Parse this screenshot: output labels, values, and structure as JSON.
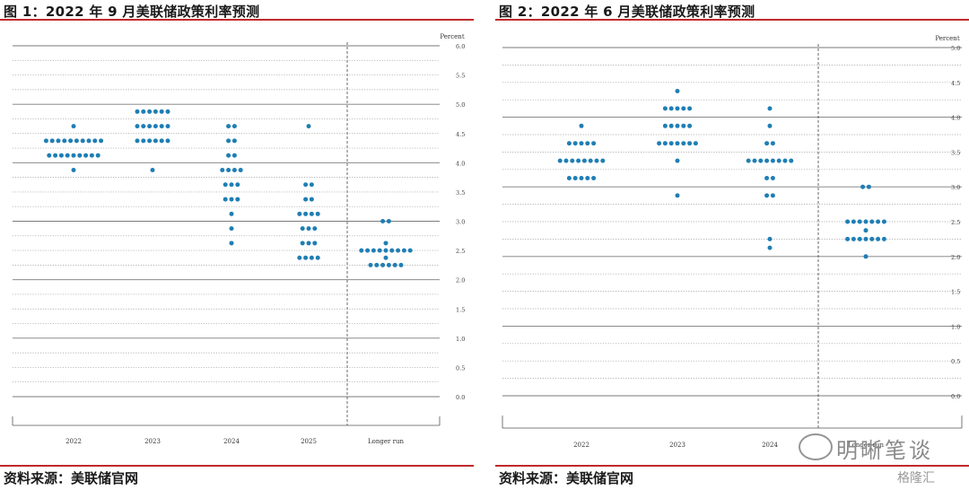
{
  "figures": [
    {
      "title": "图 1：2022 年 9 月美联储政策利率预测",
      "source": "资料来源：美联储官网"
    },
    {
      "title": "图 2：2022 年 6 月美联储政策利率预测",
      "source": "资料来源：美联储官网"
    }
  ],
  "watermark": {
    "brand": "明晰笔谈",
    "logo": "格隆汇"
  },
  "colors": {
    "dot": "#1f7eb4",
    "rule": "#c0282d",
    "grid": "#555555"
  },
  "chart_data": [
    {
      "type": "scatter",
      "subtype": "dot-plot",
      "ylabel": "Percent",
      "ylim": [
        0,
        6.0
      ],
      "yticks": [
        0.0,
        0.5,
        1.0,
        1.5,
        2.0,
        2.5,
        3.0,
        3.5,
        4.0,
        4.5,
        5.0,
        5.5,
        6.0
      ],
      "categories": [
        "2022",
        "2023",
        "2024",
        "2025",
        "Longer run"
      ],
      "dots": [
        {
          "x": "2022",
          "y": 4.625,
          "count": 1
        },
        {
          "x": "2022",
          "y": 4.375,
          "count": 10
        },
        {
          "x": "2022",
          "y": 4.125,
          "count": 9
        },
        {
          "x": "2022",
          "y": 3.875,
          "count": 1
        },
        {
          "x": "2023",
          "y": 4.875,
          "count": 6
        },
        {
          "x": "2023",
          "y": 4.625,
          "count": 6
        },
        {
          "x": "2023",
          "y": 4.375,
          "count": 6
        },
        {
          "x": "2023",
          "y": 3.875,
          "count": 1
        },
        {
          "x": "2024",
          "y": 4.625,
          "count": 2
        },
        {
          "x": "2024",
          "y": 4.375,
          "count": 2
        },
        {
          "x": "2024",
          "y": 4.125,
          "count": 2
        },
        {
          "x": "2024",
          "y": 3.875,
          "count": 4
        },
        {
          "x": "2024",
          "y": 3.625,
          "count": 3
        },
        {
          "x": "2024",
          "y": 3.375,
          "count": 3
        },
        {
          "x": "2024",
          "y": 3.125,
          "count": 1
        },
        {
          "x": "2024",
          "y": 2.875,
          "count": 1
        },
        {
          "x": "2024",
          "y": 2.625,
          "count": 1
        },
        {
          "x": "2025",
          "y": 4.625,
          "count": 1
        },
        {
          "x": "2025",
          "y": 3.625,
          "count": 2
        },
        {
          "x": "2025",
          "y": 3.375,
          "count": 2
        },
        {
          "x": "2025",
          "y": 3.125,
          "count": 4
        },
        {
          "x": "2025",
          "y": 2.875,
          "count": 3
        },
        {
          "x": "2025",
          "y": 2.625,
          "count": 3
        },
        {
          "x": "2025",
          "y": 2.375,
          "count": 4
        },
        {
          "x": "Longer run",
          "y": 3.0,
          "count": 2
        },
        {
          "x": "Longer run",
          "y": 2.625,
          "count": 1
        },
        {
          "x": "Longer run",
          "y": 2.5,
          "count": 9
        },
        {
          "x": "Longer run",
          "y": 2.375,
          "count": 1
        },
        {
          "x": "Longer run",
          "y": 2.25,
          "count": 6
        }
      ]
    },
    {
      "type": "scatter",
      "subtype": "dot-plot",
      "ylabel": "Percent",
      "ylim": [
        0,
        5.0
      ],
      "yticks": [
        0.0,
        0.5,
        1.0,
        1.5,
        2.0,
        2.5,
        3.0,
        3.5,
        4.0,
        4.5,
        5.0
      ],
      "categories": [
        "2022",
        "2023",
        "2024",
        "Longer run"
      ],
      "dots": [
        {
          "x": "2022",
          "y": 3.875,
          "count": 1
        },
        {
          "x": "2022",
          "y": 3.625,
          "count": 5
        },
        {
          "x": "2022",
          "y": 3.375,
          "count": 8
        },
        {
          "x": "2022",
          "y": 3.125,
          "count": 5
        },
        {
          "x": "2023",
          "y": 4.375,
          "count": 1
        },
        {
          "x": "2023",
          "y": 4.125,
          "count": 5
        },
        {
          "x": "2023",
          "y": 3.875,
          "count": 5
        },
        {
          "x": "2023",
          "y": 3.625,
          "count": 7
        },
        {
          "x": "2023",
          "y": 3.375,
          "count": 1
        },
        {
          "x": "2023",
          "y": 2.875,
          "count": 1
        },
        {
          "x": "2024",
          "y": 4.125,
          "count": 1
        },
        {
          "x": "2024",
          "y": 3.875,
          "count": 1
        },
        {
          "x": "2024",
          "y": 3.625,
          "count": 2
        },
        {
          "x": "2024",
          "y": 3.375,
          "count": 8
        },
        {
          "x": "2024",
          "y": 3.125,
          "count": 2
        },
        {
          "x": "2024",
          "y": 2.875,
          "count": 2
        },
        {
          "x": "2024",
          "y": 2.25,
          "count": 1
        },
        {
          "x": "2024",
          "y": 2.125,
          "count": 1
        },
        {
          "x": "Longer run",
          "y": 3.0,
          "count": 2
        },
        {
          "x": "Longer run",
          "y": 2.5,
          "count": 7
        },
        {
          "x": "Longer run",
          "y": 2.375,
          "count": 1
        },
        {
          "x": "Longer run",
          "y": 2.25,
          "count": 7
        },
        {
          "x": "Longer run",
          "y": 2.0,
          "count": 1
        }
      ]
    }
  ]
}
